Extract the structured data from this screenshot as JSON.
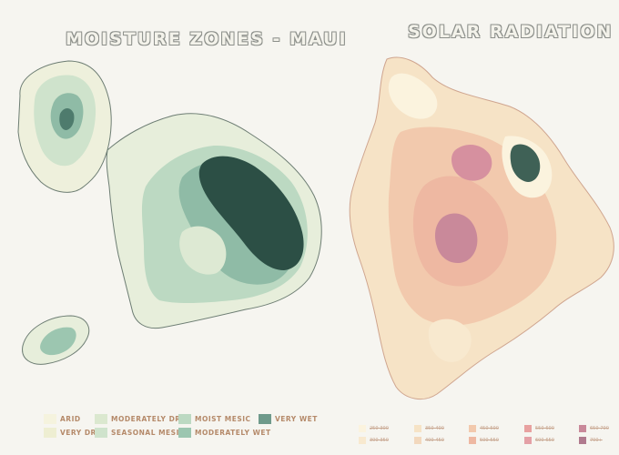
{
  "maps": {
    "maui_title": "MOISTURE ZONES - MAUI",
    "solar_title": "SOLAR RADIATION"
  },
  "moisture_legend": [
    {
      "label": "ARID",
      "color": "#f5f3de"
    },
    {
      "label": "VERY DRY",
      "color": "#eeeed2"
    },
    {
      "label": "MODERATELY DRY",
      "color": "#dbe8cf"
    },
    {
      "label": "SEASONAL MESIC",
      "color": "#cfe3cc"
    },
    {
      "label": "MOIST MESIC",
      "color": "#bcd9c2"
    },
    {
      "label": "MODERATELY WET",
      "color": "#9cc6b0"
    },
    {
      "label": "VERY WET",
      "color": "#6f9a8b"
    }
  ],
  "solar_legend": [
    {
      "label": "250-300",
      "color": "#fbf3de"
    },
    {
      "label": "300-350",
      "color": "#f8e9cf"
    },
    {
      "label": "350-400",
      "color": "#f6e3c6"
    },
    {
      "label": "400-450",
      "color": "#f2d8bd"
    },
    {
      "label": "450-500",
      "color": "#f2c9ad"
    },
    {
      "label": "500-550",
      "color": "#eeb8a2"
    },
    {
      "label": "550-600",
      "color": "#e8a1a0"
    },
    {
      "label": "600-650",
      "color": "#e4a0a6"
    },
    {
      "label": "650-700",
      "color": "#c9899a"
    },
    {
      "label": "700+",
      "color": "#b07a8e"
    }
  ]
}
